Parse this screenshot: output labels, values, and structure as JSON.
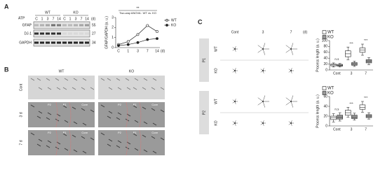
{
  "panels": [
    "A",
    "B",
    "C"
  ],
  "blot": {
    "treatment": "ATP",
    "groups": [
      "WT",
      "KO"
    ],
    "lanes": [
      "C",
      "1",
      "3",
      "7",
      "14",
      "C",
      "1",
      "3",
      "7",
      "14"
    ],
    "unit": "(d)",
    "rows": [
      "GFAP",
      "DJ-1",
      "GAPDH"
    ],
    "markers": [
      "55",
      "27",
      "34"
    ]
  },
  "images_b": {
    "columns": [
      "WT",
      "KO"
    ],
    "rows": [
      "Cont",
      "3 d",
      "7 d"
    ],
    "regions": [
      "P2",
      "P1",
      "Core"
    ]
  },
  "images_c": {
    "columns": [
      "Cont",
      "3",
      "7"
    ],
    "unit": "(d)",
    "groups": [
      "P1",
      "P2"
    ],
    "rows": [
      "WT",
      "KO"
    ]
  },
  "chart_data": [
    {
      "type": "line",
      "y_label": "GFAP/GAPDH (a. u.)",
      "annotation": "Two-way ANOVA : WT vs. KO",
      "significance": "**",
      "categories": [
        "C",
        "1",
        "3",
        "7",
        "14"
      ],
      "x_unit": "(d)",
      "series": [
        {
          "name": "WT",
          "color": "#ffffff",
          "values": [
            0.3,
            0.6,
            1.3,
            2.2,
            1.6
          ]
        },
        {
          "name": "KO",
          "color": "#222222",
          "values": [
            0.2,
            0.3,
            0.5,
            0.8,
            0.9
          ]
        }
      ],
      "ylim": [
        0,
        3
      ],
      "yticks": [
        0,
        1,
        2,
        3
      ],
      "legend": "right"
    },
    {
      "type": "box",
      "y_label": "Process length (a. u.)",
      "categories": [
        "Cont",
        "3",
        "7"
      ],
      "annotations": [
        "n.s",
        "***",
        "***"
      ],
      "series": [
        {
          "name": "WT",
          "color": "#ffffff",
          "boxes": [
            {
              "min": 10,
              "q1": 14,
              "median": 17,
              "q3": 20,
              "max": 24
            },
            {
              "min": 35,
              "q1": 45,
              "median": 55,
              "q3": 65,
              "max": 78
            },
            {
              "min": 50,
              "q1": 60,
              "median": 68,
              "q3": 75,
              "max": 88
            }
          ]
        },
        {
          "name": "KO",
          "color": "#999999",
          "boxes": [
            {
              "min": 10,
              "q1": 13,
              "median": 16,
              "q3": 19,
              "max": 22
            },
            {
              "min": 12,
              "q1": 16,
              "median": 20,
              "q3": 25,
              "max": 30
            },
            {
              "min": 18,
              "q1": 24,
              "median": 30,
              "q3": 35,
              "max": 42
            }
          ]
        }
      ],
      "ylim": [
        0,
        100
      ],
      "yticks": [
        0,
        20,
        40,
        60,
        80,
        100
      ],
      "legend": "upper left"
    },
    {
      "type": "box",
      "y_label": "Process length (a. u.)",
      "categories": [
        "Cont",
        "3",
        "7"
      ],
      "annotations": [
        "n.s",
        "***",
        "***"
      ],
      "series": [
        {
          "name": "WT",
          "color": "#ffffff",
          "boxes": [
            {
              "min": 8,
              "q1": 13,
              "median": 17,
              "q3": 20,
              "max": 25
            },
            {
              "min": 18,
              "q1": 22,
              "median": 27,
              "q3": 32,
              "max": 38
            },
            {
              "min": 28,
              "q1": 34,
              "median": 38,
              "q3": 43,
              "max": 50
            }
          ]
        },
        {
          "name": "KO",
          "color": "#999999",
          "boxes": [
            {
              "min": 10,
              "q1": 14,
              "median": 18,
              "q3": 22,
              "max": 27
            },
            {
              "min": 12,
              "q1": 15,
              "median": 18,
              "q3": 22,
              "max": 26
            },
            {
              "min": 14,
              "q1": 17,
              "median": 20,
              "q3": 23,
              "max": 27
            }
          ]
        }
      ],
      "ylim": [
        0,
        60
      ],
      "yticks": [
        0,
        20,
        40,
        60
      ],
      "legend": "upper left"
    }
  ]
}
